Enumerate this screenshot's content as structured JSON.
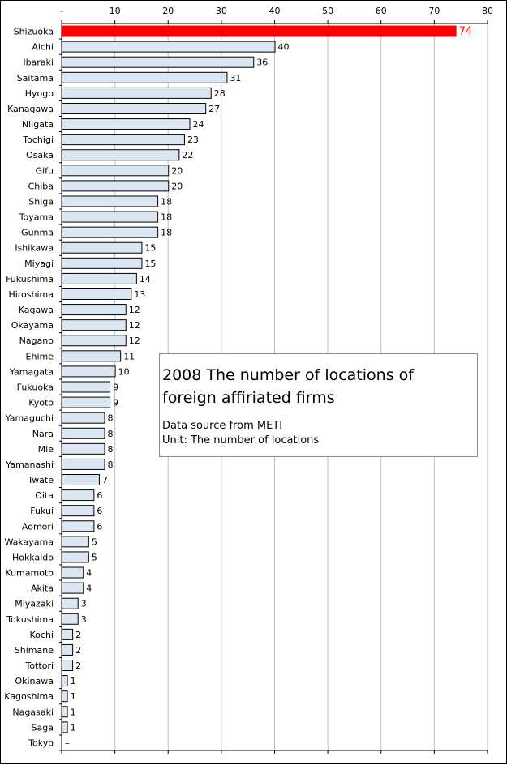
{
  "chart_data": {
    "type": "bar",
    "orientation": "horizontal",
    "categories": [
      "Shizuoka",
      "Aichi",
      "Ibaraki",
      "Saitama",
      "Hyogo",
      "Kanagawa",
      "Niigata",
      "Tochigi",
      "Osaka",
      "Gifu",
      "Chiba",
      "Shiga",
      "Toyama",
      "Gunma",
      "Ishikawa",
      "Miyagi",
      "Fukushima",
      "Hiroshima",
      "Kagawa",
      "Okayama",
      "Nagano",
      "Ehime",
      "Yamagata",
      "Fukuoka",
      "Kyoto",
      "Yamaguchi",
      "Nara",
      "Mie",
      "Yamanashi",
      "Iwate",
      "Oita",
      "Fukui",
      "Aomori",
      "Wakayama",
      "Hokkaido",
      "Kumamoto",
      "Akita",
      "Miyazaki",
      "Tokushima",
      "Kochi",
      "Shimane",
      "Tottori",
      "Okinawa",
      "Kagoshima",
      "Nagasaki",
      "Saga",
      "Tokyo"
    ],
    "values": [
      74,
      40,
      36,
      31,
      28,
      27,
      24,
      23,
      22,
      20,
      20,
      18,
      18,
      18,
      15,
      15,
      14,
      13,
      12,
      12,
      12,
      11,
      10,
      9,
      9,
      8,
      8,
      8,
      8,
      7,
      6,
      6,
      6,
      5,
      5,
      4,
      4,
      3,
      3,
      2,
      2,
      2,
      1,
      1,
      1,
      1,
      null
    ],
    "value_labels": [
      "74",
      "40",
      "36",
      "31",
      "28",
      "27",
      "24",
      "23",
      "22",
      "20",
      "20",
      "18",
      "18",
      "18",
      "15",
      "15",
      "14",
      "13",
      "12",
      "12",
      "12",
      "11",
      "10",
      "9",
      "9",
      "8",
      "8",
      "8",
      "8",
      "7",
      "6",
      "6",
      "6",
      "5",
      "5",
      "4",
      "4",
      "3",
      "3",
      "2",
      "2",
      "2",
      "1",
      "1",
      "1",
      "1",
      "–"
    ],
    "xticks": [
      "-",
      "10",
      "20",
      "30",
      "40",
      "50",
      "60",
      "70",
      "80"
    ],
    "xlim": [
      0,
      80
    ],
    "grid": true,
    "colors": {
      "bar": "#dce6f2",
      "highlight": "#ff0000",
      "highlight_label": "#ff0000",
      "grid": "#c0c0c0"
    }
  },
  "legend_box": {
    "title": "2008 The number of  locations of\nforeign affiriated firms",
    "source": "Data source from  METI",
    "unit": "Unit: The number of locations"
  }
}
